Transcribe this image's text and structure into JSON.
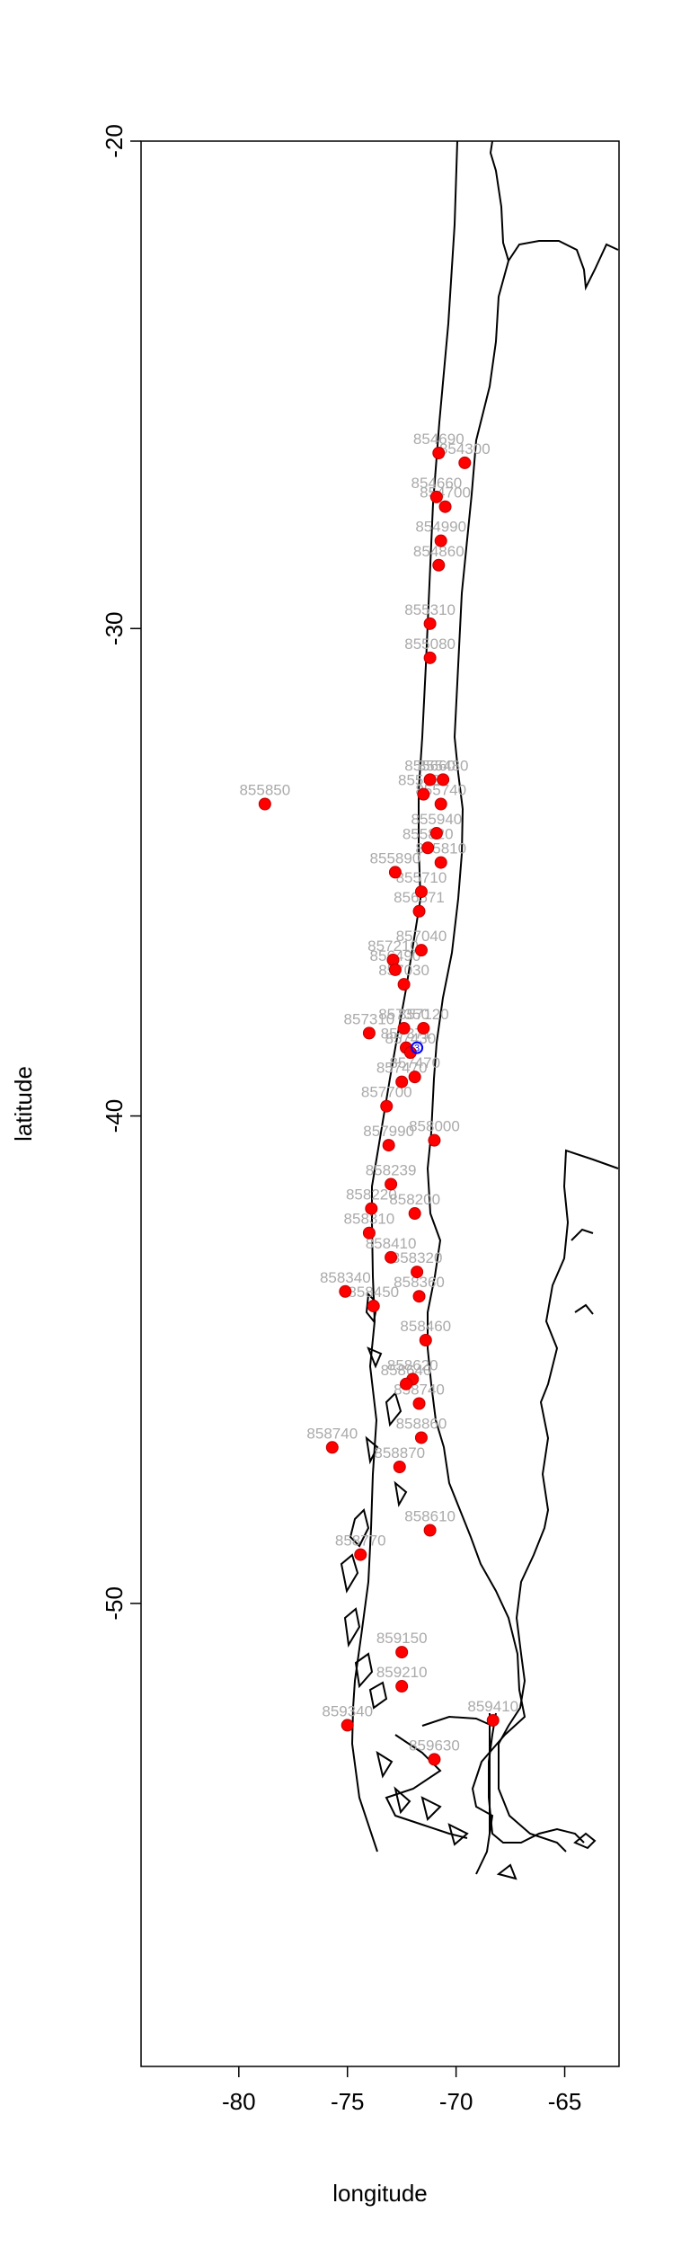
{
  "chart_data": {
    "type": "scatter",
    "xlabel": "longitude",
    "ylabel": "latitude",
    "xlim": [
      -84.5,
      -62.5
    ],
    "ylim": [
      -59.5,
      -20
    ],
    "x_ticks": [
      -80,
      -75,
      -70,
      -65
    ],
    "y_ticks": [
      -20,
      -30,
      -40,
      -50
    ],
    "grid": false,
    "legend": "none",
    "colors": {
      "station": "#ff0000",
      "highlight": "#0000ff",
      "label": "#aaaaaa",
      "coast": "#000000"
    },
    "stations": [
      {
        "id": "854690",
        "x": -70.8,
        "y": -26.4
      },
      {
        "id": "854300",
        "x": -69.6,
        "y": -26.6
      },
      {
        "id": "854660",
        "x": -70.9,
        "y": -27.3
      },
      {
        "id": "854700",
        "x": -70.5,
        "y": -27.5
      },
      {
        "id": "854990",
        "x": -70.7,
        "y": -28.2
      },
      {
        "id": "854860",
        "x": -70.8,
        "y": -28.7
      },
      {
        "id": "855310",
        "x": -71.2,
        "y": -29.9
      },
      {
        "id": "855080",
        "x": -71.2,
        "y": -30.6
      },
      {
        "id": "855850",
        "x": -78.8,
        "y": -33.6
      },
      {
        "id": "855660",
        "x": -71.2,
        "y": -33.1
      },
      {
        "id": "855480",
        "x": -70.6,
        "y": -33.1
      },
      {
        "id": "855430",
        "x": -71.5,
        "y": -33.4
      },
      {
        "id": "855740",
        "x": -70.7,
        "y": -33.6
      },
      {
        "id": "855940",
        "x": -70.9,
        "y": -34.2
      },
      {
        "id": "855820",
        "x": -71.3,
        "y": -34.5
      },
      {
        "id": "855810",
        "x": -70.7,
        "y": -34.8
      },
      {
        "id": "855890",
        "x": -72.8,
        "y": -35.0
      },
      {
        "id": "855710",
        "x": -71.6,
        "y": -35.4
      },
      {
        "id": "856571",
        "x": -71.7,
        "y": -35.8
      },
      {
        "id": "857040",
        "x": -71.6,
        "y": -36.6
      },
      {
        "id": "857210",
        "x": -72.9,
        "y": -36.8
      },
      {
        "id": "856490",
        "x": -72.8,
        "y": -37.0
      },
      {
        "id": "857030",
        "x": -72.4,
        "y": -37.3
      },
      {
        "id": "857120",
        "x": -71.5,
        "y": -38.2
      },
      {
        "id": "857310",
        "x": -74.0,
        "y": -38.3
      },
      {
        "id": "857350",
        "x": -72.4,
        "y": -38.2
      },
      {
        "id": "857371",
        "x": -72.3,
        "y": -38.6
      },
      {
        "id": "857430",
        "x": -72.1,
        "y": -38.7
      },
      {
        "id": "857470",
        "x": -71.9,
        "y": -39.2
      },
      {
        "id": "857470",
        "x": -72.5,
        "y": -39.3
      },
      {
        "id": "857700",
        "x": -73.2,
        "y": -39.8
      },
      {
        "id": "858000",
        "x": -71.0,
        "y": -40.5
      },
      {
        "id": "857990",
        "x": -73.1,
        "y": -40.6
      },
      {
        "id": "858239",
        "x": -73.0,
        "y": -41.4
      },
      {
        "id": "858220",
        "x": -73.9,
        "y": -41.9
      },
      {
        "id": "858200",
        "x": -71.9,
        "y": -42.0
      },
      {
        "id": "858310",
        "x": -74.0,
        "y": -42.4
      },
      {
        "id": "858410",
        "x": -73.0,
        "y": -42.9
      },
      {
        "id": "858320",
        "x": -71.8,
        "y": -43.2
      },
      {
        "id": "858340",
        "x": -75.1,
        "y": -43.6
      },
      {
        "id": "858360",
        "x": -71.7,
        "y": -43.7
      },
      {
        "id": "858450",
        "x": -73.8,
        "y": -43.9
      },
      {
        "id": "858460",
        "x": -71.4,
        "y": -44.6
      },
      {
        "id": "858620",
        "x": -72.0,
        "y": -45.4
      },
      {
        "id": "858640",
        "x": -72.3,
        "y": -45.5
      },
      {
        "id": "858740",
        "x": -71.7,
        "y": -45.9
      },
      {
        "id": "858860",
        "x": -71.6,
        "y": -46.6
      },
      {
        "id": "858740",
        "x": -75.7,
        "y": -46.8
      },
      {
        "id": "858870",
        "x": -72.6,
        "y": -47.2
      },
      {
        "id": "858610",
        "x": -71.2,
        "y": -48.5
      },
      {
        "id": "858770",
        "x": -74.4,
        "y": -49.0
      },
      {
        "id": "859150",
        "x": -72.5,
        "y": -51.0
      },
      {
        "id": "859210",
        "x": -72.5,
        "y": -51.7
      },
      {
        "id": "859340",
        "x": -75.0,
        "y": -52.5
      },
      {
        "id": "859410",
        "x": -68.3,
        "y": -52.4
      },
      {
        "id": "859630",
        "x": -71.0,
        "y": -53.2
      }
    ],
    "highlights": [
      {
        "id": "3",
        "x": -71.8,
        "y": -38.6
      }
    ]
  }
}
